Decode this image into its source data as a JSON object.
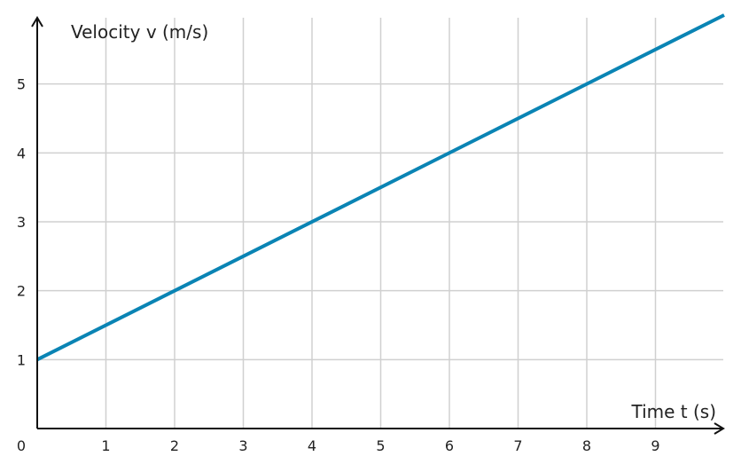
{
  "chart_data": {
    "type": "line",
    "title": "",
    "xlabel": "Time t (s)",
    "ylabel": "Velocity v (m/s)",
    "origin_label": "0",
    "xlim": [
      0,
      10
    ],
    "ylim": [
      0,
      6
    ],
    "x_ticks": [
      1,
      2,
      3,
      4,
      5,
      6,
      7,
      8,
      9
    ],
    "y_ticks": [
      1,
      2,
      3,
      4,
      5
    ],
    "grid": true,
    "series": [
      {
        "color": "#0a84b4",
        "x": [
          0,
          10
        ],
        "y": [
          1,
          6
        ]
      }
    ]
  }
}
